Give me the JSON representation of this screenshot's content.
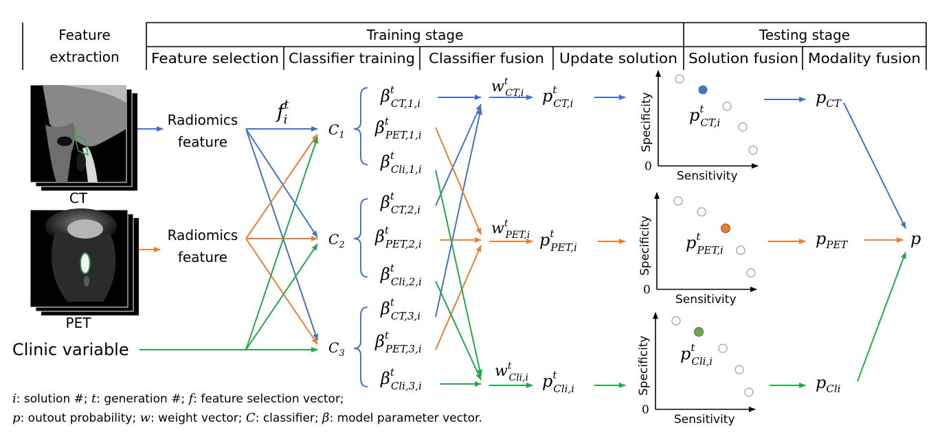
{
  "header": {
    "feature_extraction_1": "Feature",
    "feature_extraction_2": "extraction",
    "training_stage": "Training stage",
    "testing_stage": "Testing stage",
    "feature_selection": "Feature selection",
    "classifier_training": "Classifier training",
    "classifier_fusion": "Classifier fusion",
    "update_solution": "Update solution",
    "solution_fusion": "Solution fusion",
    "modality_fusion": "Modality fusion"
  },
  "inputs": {
    "ct_label": "CT",
    "pet_label": "PET",
    "clinic_label": "Clinic variable",
    "radiomics_1": "Radiomics",
    "feature_1": "feature",
    "radiomics_2": "Radiomics",
    "feature_2": "feature"
  },
  "symbols": {
    "f": "f",
    "f_sub": "i",
    "f_sup": "t",
    "classifiers": [
      {
        "base": "C",
        "sub": "1"
      },
      {
        "base": "C",
        "sub": "2"
      },
      {
        "base": "C",
        "sub": "3"
      }
    ],
    "betas": [
      {
        "sub": "CT,1,i"
      },
      {
        "sub": "PET,1,i"
      },
      {
        "sub": "Cli,1,i"
      },
      {
        "sub": "CT,2,i"
      },
      {
        "sub": "PET,2,i"
      },
      {
        "sub": "Cli,2,i"
      },
      {
        "sub": "CT,3,i"
      },
      {
        "sub": "PET,3,i"
      },
      {
        "sub": "Cli,3,i"
      }
    ],
    "beta": "β",
    "sup_t": "t",
    "weights": [
      {
        "sub": "CT,i"
      },
      {
        "sub": "PET,i"
      },
      {
        "sub": "Cli,i"
      }
    ],
    "w": "w",
    "probs": [
      {
        "sub": "CT,i"
      },
      {
        "sub": "PET,i"
      },
      {
        "sub": "Cli,i"
      }
    ],
    "p": "p",
    "final_probs": [
      {
        "sub": "CT"
      },
      {
        "sub": "PET"
      },
      {
        "sub": "Cli"
      }
    ],
    "final_p": "p"
  },
  "plots": {
    "ylabel": "Specificity",
    "xlabel": "Sensitivity",
    "zero": "0"
  },
  "legend": {
    "line1_parts": [
      "i",
      ": solution #; ",
      "t",
      ": generation #; ",
      "f",
      ":  feature selection vector;"
    ],
    "line2_parts": [
      "p",
      ": outout probability; ",
      "w",
      ": weight vector; ",
      "C",
      ": classifier; ",
      "β",
      ": model parameter vector."
    ]
  },
  "colors": {
    "ct": "#4472c4",
    "pet": "#ed7d31",
    "clinic": "#22a84a"
  }
}
